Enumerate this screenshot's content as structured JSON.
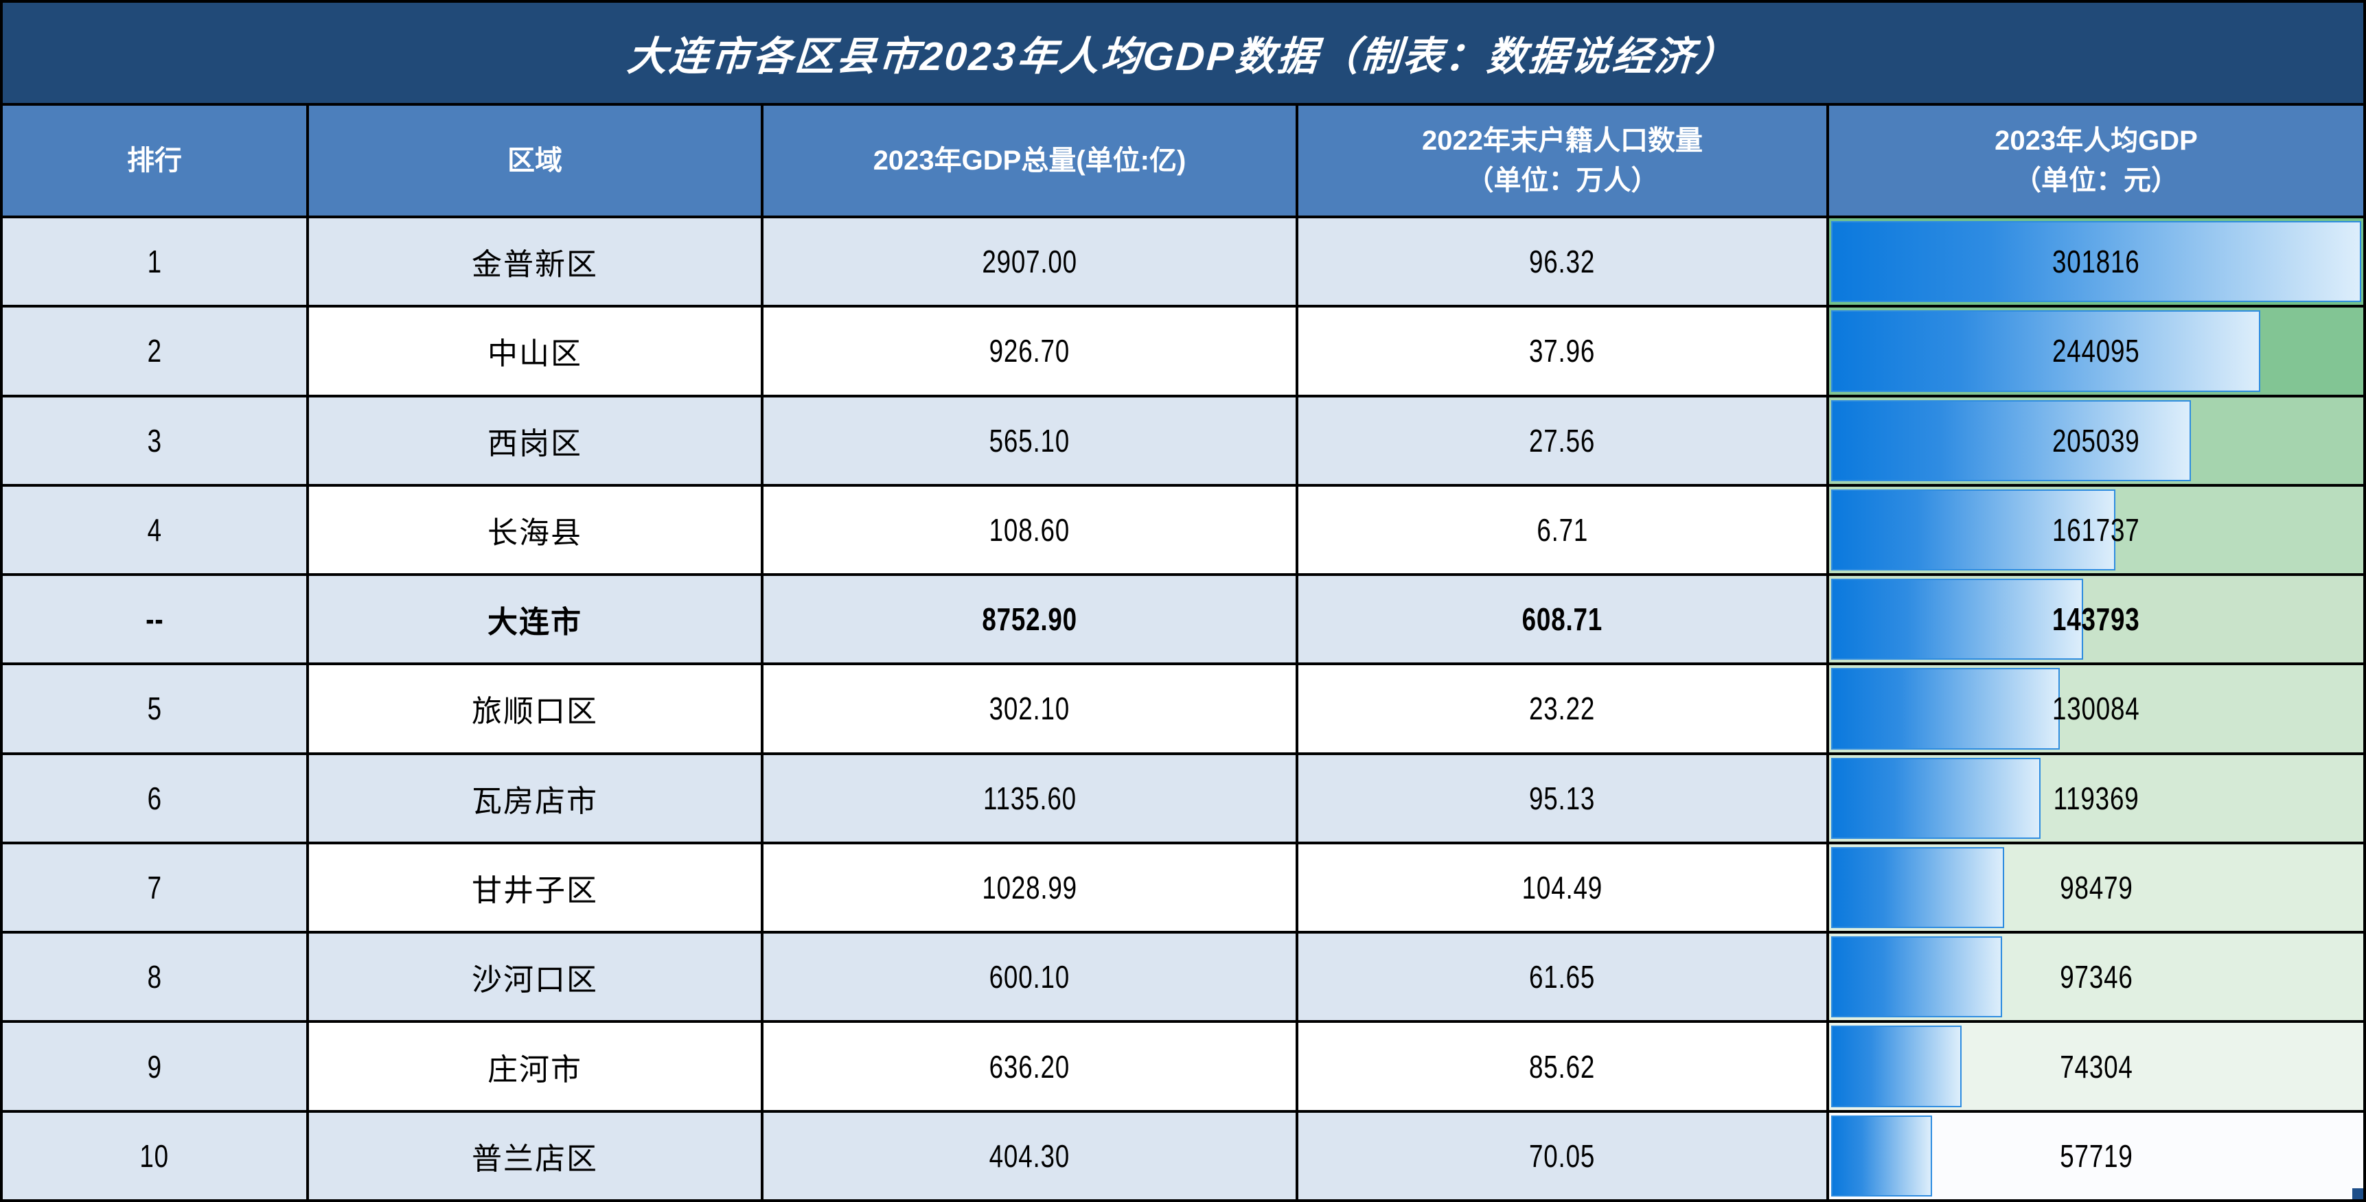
{
  "title": "大连市各区县市2023年人均GDP数据（制表：数据说经济）",
  "colors": {
    "title_bg": "#214a78",
    "header_bg": "#4c7fbc",
    "border": "#000000",
    "rank_col_bg": "#dbe5f1",
    "stripe_light_blue": "#dbe5f1",
    "stripe_white": "#ffffff",
    "bar_blue_start": "#0b79dd",
    "bar_blue_end": "#ddeefb",
    "bar_border": "#2e8ce0"
  },
  "header": {
    "col1": "排行",
    "col2": "区域",
    "col3": "2023年GDP总量(单位:亿)",
    "col4_line1": "2022年末户籍人口数量",
    "col4_line2": "（单位：万人）",
    "col5_line1": "2023年人均GDP",
    "col5_line2": "（单位：元）"
  },
  "chart_data": {
    "type": "table",
    "title": "大连市各区县市2023年人均GDP数据（制表：数据说经济）",
    "columns": [
      "排行",
      "区域",
      "2023年GDP总量(单位:亿)",
      "2022年末户籍人口数量（单位：万人）",
      "2023年人均GDP（单位：元）"
    ],
    "bar_max_value": 301816,
    "rows": [
      {
        "rank": "1",
        "region": "金普新区",
        "gdp": "2907.00",
        "pop": "96.32",
        "percap": "301816",
        "bar_pct": 100,
        "right_bg": "#74c28c",
        "stripe": "#dbe5f1",
        "bold": false
      },
      {
        "rank": "2",
        "region": "中山区",
        "gdp": "926.70",
        "pop": "37.96",
        "percap": "244095",
        "bar_pct": 80.9,
        "right_bg": "#82c594",
        "stripe": "#ffffff",
        "bold": false
      },
      {
        "rank": "3",
        "region": "西岗区",
        "gdp": "565.10",
        "pop": "27.56",
        "percap": "205039",
        "bar_pct": 67.9,
        "right_bg": "#a5d4ae",
        "stripe": "#dbe5f1",
        "bold": false
      },
      {
        "rank": "4",
        "region": "长海县",
        "gdp": "108.60",
        "pop": "6.71",
        "percap": "161737",
        "bar_pct": 53.6,
        "right_bg": "#b9ddbe",
        "stripe": "#ffffff",
        "bold": false
      },
      {
        "rank": "--",
        "region": "大连市",
        "gdp": "8752.90",
        "pop": "608.71",
        "percap": "143793",
        "bar_pct": 47.6,
        "right_bg": "#c9e3ca",
        "stripe": "#dbe5f1",
        "bold": true
      },
      {
        "rank": "5",
        "region": "旅顺口区",
        "gdp": "302.10",
        "pop": "23.22",
        "percap": "130084",
        "bar_pct": 43.1,
        "right_bg": "#cfe7d0",
        "stripe": "#ffffff",
        "bold": false
      },
      {
        "rank": "6",
        "region": "瓦房店市",
        "gdp": "1135.60",
        "pop": "95.13",
        "percap": "119369",
        "bar_pct": 39.5,
        "right_bg": "#d5ead6",
        "stripe": "#dbe5f1",
        "bold": false
      },
      {
        "rank": "7",
        "region": "甘井子区",
        "gdp": "1028.99",
        "pop": "104.49",
        "percap": "98479",
        "bar_pct": 32.6,
        "right_bg": "#dfefdf",
        "stripe": "#ffffff",
        "bold": false
      },
      {
        "rank": "8",
        "region": "沙河口区",
        "gdp": "600.10",
        "pop": "61.65",
        "percap": "97346",
        "bar_pct": 32.3,
        "right_bg": "#e1f0e2",
        "stripe": "#dbe5f1",
        "bold": false
      },
      {
        "rank": "9",
        "region": "庄河市",
        "gdp": "636.20",
        "pop": "85.62",
        "percap": "74304",
        "bar_pct": 24.6,
        "right_bg": "#ebf4ec",
        "stripe": "#ffffff",
        "bold": false
      },
      {
        "rank": "10",
        "region": "普兰店区",
        "gdp": "404.30",
        "pop": "70.05",
        "percap": "57719",
        "bar_pct": 19.1,
        "right_bg": "#fbfcfe",
        "stripe": "#dbe5f1",
        "bold": false
      }
    ]
  }
}
